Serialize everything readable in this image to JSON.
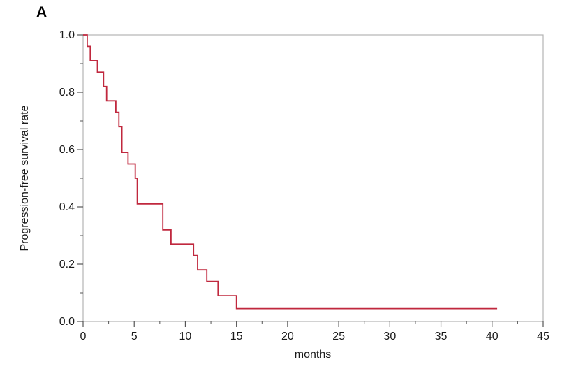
{
  "chart_data": {
    "type": "line",
    "panel_label": "A",
    "title": "",
    "xlabel": "months",
    "ylabel": "Progression-free survival rate",
    "xlim": [
      0,
      45
    ],
    "ylim": [
      0,
      1.0
    ],
    "x_ticks": [
      0,
      5,
      10,
      15,
      20,
      25,
      30,
      35,
      40,
      45
    ],
    "x_tick_labels": [
      "0",
      "5",
      "10",
      "15",
      "20",
      "25",
      "30",
      "35",
      "40",
      "45"
    ],
    "y_ticks": [
      0.0,
      0.2,
      0.4,
      0.6,
      0.8,
      1.0
    ],
    "y_tick_labels": [
      "0.0",
      "0.2",
      "0.4",
      "0.6",
      "0.8",
      "1.0"
    ],
    "grid": false,
    "step": true,
    "series": [
      {
        "color": "#c0283e",
        "x": [
          0,
          0.4,
          0.7,
          1.4,
          2.0,
          2.3,
          3.2,
          3.5,
          3.8,
          4.4,
          5.1,
          5.3,
          7.8,
          8.6,
          10.8,
          11.2,
          12.1,
          13.2,
          15.0,
          40.5
        ],
        "y": [
          1.0,
          0.96,
          0.91,
          0.87,
          0.82,
          0.77,
          0.73,
          0.68,
          0.59,
          0.55,
          0.5,
          0.41,
          0.32,
          0.27,
          0.23,
          0.18,
          0.14,
          0.09,
          0.045,
          0.045
        ]
      }
    ]
  }
}
